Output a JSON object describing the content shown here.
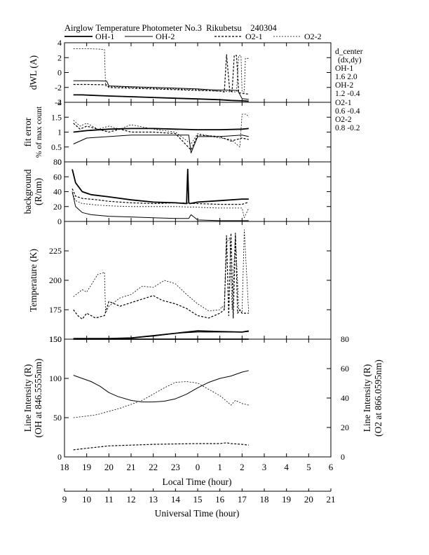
{
  "header": {
    "title": "Airglow Temperature Photometer No.3  Rikubetsu    240304"
  },
  "legend": [
    {
      "name": "OH-1",
      "dash": "",
      "width": 1.8
    },
    {
      "name": "OH-2",
      "dash": "",
      "width": 1.0
    },
    {
      "name": "O2-1",
      "dash": "3,2",
      "width": 1.2
    },
    {
      "name": "O2-2",
      "dash": "2,2",
      "width": 0.8
    }
  ],
  "side_info": {
    "heading": "d_center",
    "subheading": "(dx,dy)",
    "entries": [
      {
        "label": "OH-1",
        "value": "1.6   2.0"
      },
      {
        "label": "OH-2",
        "value": "1.2  -0.4"
      },
      {
        "label": "O2-1",
        "value": "0.6  -0.4"
      },
      {
        "label": "O2-2",
        "value": "0.8  -0.2"
      }
    ]
  },
  "chart_data": {
    "type": "line",
    "x_axis": {
      "label": "Local Time (hour)",
      "range": [
        18,
        30
      ],
      "ticks": [
        "18",
        "19",
        "20",
        "21",
        "22",
        "23",
        "0",
        "1",
        "2",
        "3",
        "4",
        "5",
        "6"
      ]
    },
    "ut_axis": {
      "label": "Universal Time (hour)",
      "range": [
        9,
        21
      ],
      "ticks": [
        "9",
        "10",
        "11",
        "12",
        "13",
        "14",
        "15",
        "16",
        "17",
        "18",
        "19",
        "20",
        "21"
      ]
    },
    "panels": [
      {
        "id": "dwl",
        "ylabel": [
          "dWL (A)"
        ],
        "ylim": [
          -4,
          4
        ],
        "yticks": [
          "4",
          "2",
          "0",
          "-2",
          "-4"
        ],
        "series": [
          {
            "name": "OH-1",
            "x": [
              18.4,
              18.8,
              19.5,
              20.0,
              21.0,
              22.0,
              23.0,
              24.0,
              25.0,
              25.5,
              26.0,
              26.3
            ],
            "y": [
              -3.0,
              -3.0,
              -3.1,
              -3.15,
              -3.25,
              -3.35,
              -3.45,
              -3.55,
              -3.65,
              -3.75,
              -3.8,
              -3.85
            ]
          },
          {
            "name": "OH-2",
            "x": [
              18.4,
              19.0,
              19.5,
              19.9,
              20.0,
              21.0,
              22.0,
              23.0,
              24.0,
              24.5,
              25.0,
              25.8,
              26.0,
              26.3
            ],
            "y": [
              -1.1,
              -1.1,
              -1.1,
              -1.15,
              -1.8,
              -1.9,
              -2.0,
              -2.1,
              -2.2,
              -2.3,
              -2.35,
              -2.4,
              -3.5,
              -3.6
            ]
          },
          {
            "name": "O2-1",
            "x": [
              18.4,
              19.0,
              19.9,
              20.0,
              21.0,
              22.0,
              23.0,
              24.0,
              24.6,
              25.0,
              25.2,
              25.3,
              25.45,
              25.55,
              25.65,
              25.75,
              25.85,
              26.0,
              26.3
            ],
            "y": [
              -1.6,
              -1.6,
              -1.65,
              -2.0,
              -2.1,
              -2.2,
              -2.3,
              -2.4,
              -2.45,
              -2.5,
              -2.6,
              2.4,
              -2.6,
              -2.5,
              2.3,
              2.3,
              -2.7,
              -2.8,
              -2.9
            ]
          },
          {
            "name": "O2-2",
            "x": [
              18.4,
              19.0,
              19.5,
              19.8,
              19.85,
              20.0,
              21.0,
              22.0,
              23.0,
              24.0,
              25.0,
              25.5,
              25.75,
              25.85,
              25.95,
              26.0,
              26.1,
              26.15,
              26.3
            ],
            "y": [
              3.2,
              3.2,
              3.15,
              3.1,
              -1.8,
              -1.85,
              -2.0,
              -2.1,
              -2.2,
              -2.3,
              -2.5,
              -2.6,
              -2.6,
              2.3,
              2.3,
              -2.6,
              -2.6,
              1.9,
              1.9
            ]
          }
        ]
      },
      {
        "id": "fit",
        "ylabel": [
          "fit error",
          "% of max count"
        ],
        "ylim": [
          0,
          2
        ],
        "yticks": [
          "2",
          "1.5",
          "1",
          "0.5",
          "0"
        ],
        "series": [
          {
            "name": "OH-1",
            "x": [
              18.4,
              19.0,
              20.0,
              21.0,
              22.0,
              23.0,
              24.0,
              25.0,
              26.0,
              26.3
            ],
            "y": [
              1.0,
              1.05,
              1.1,
              1.12,
              1.12,
              1.1,
              1.08,
              1.08,
              1.1,
              1.12
            ]
          },
          {
            "name": "OH-2",
            "x": [
              18.4,
              19.0,
              20.0,
              21.0,
              22.0,
              23.0,
              23.6,
              23.7,
              24.0,
              25.0,
              26.0,
              26.3
            ],
            "y": [
              0.6,
              0.8,
              0.85,
              0.9,
              0.9,
              0.9,
              0.9,
              0.3,
              0.85,
              0.85,
              0.9,
              0.85
            ]
          },
          {
            "name": "O2-1",
            "x": [
              18.4,
              18.7,
              19.0,
              19.5,
              20.0,
              20.5,
              21.0,
              22.0,
              23.0,
              23.7,
              24.0,
              25.0,
              25.5,
              26.0,
              26.3
            ],
            "y": [
              1.3,
              1.1,
              1.2,
              1.1,
              1.0,
              1.1,
              1.0,
              1.0,
              0.95,
              0.4,
              0.9,
              0.85,
              0.7,
              0.8,
              0.75
            ]
          },
          {
            "name": "O2-2",
            "x": [
              18.4,
              18.7,
              19.0,
              19.5,
              20.0,
              20.5,
              21.0,
              22.0,
              23.0,
              23.7,
              24.0,
              25.0,
              25.5,
              25.9,
              26.0,
              26.2,
              26.3
            ],
            "y": [
              1.4,
              1.2,
              1.3,
              1.1,
              1.2,
              1.1,
              1.25,
              1.1,
              1.0,
              0.6,
              0.95,
              0.8,
              0.75,
              0.5,
              1.6,
              1.6,
              1.5
            ]
          }
        ]
      },
      {
        "id": "bg",
        "ylabel": [
          "background",
          "(R/nm)"
        ],
        "ylim": [
          0,
          80
        ],
        "yticks": [
          "80",
          "60",
          "40",
          "20",
          "0"
        ],
        "series": [
          {
            "name": "OH-1",
            "x": [
              18.35,
              18.5,
              18.8,
              19.2,
              20.0,
              21.0,
              22.0,
              23.0,
              23.5,
              23.55,
              23.6,
              23.65,
              24.0,
              25.0,
              26.0,
              26.3
            ],
            "y": [
              70,
              52,
              40,
              36,
              33,
              29,
              26,
              25,
              24,
              70,
              25,
              24,
              26,
              28,
              30,
              30
            ]
          },
          {
            "name": "OH-2",
            "x": [
              18.35,
              18.5,
              18.8,
              19.2,
              20.0,
              21.0,
              22.0,
              23.0,
              23.6,
              23.7,
              24.0,
              25.0,
              26.0,
              26.3
            ],
            "y": [
              40,
              20,
              12,
              9,
              7,
              6,
              5,
              4,
              4,
              9,
              2,
              1,
              1,
              1
            ]
          },
          {
            "name": "O2-1",
            "x": [
              18.35,
              18.5,
              18.8,
              19.5,
              20.0,
              21.0,
              22.0,
              23.0,
              24.0,
              25.0,
              26.0,
              26.3
            ],
            "y": [
              44,
              34,
              31,
              29,
              27,
              25,
              24,
              25,
              24,
              23,
              23,
              26
            ]
          },
          {
            "name": "O2-2",
            "x": [
              18.35,
              18.5,
              18.8,
              19.5,
              20.0,
              21.0,
              22.0,
              23.0,
              24.0,
              25.0,
              26.0,
              26.1,
              26.3
            ],
            "y": [
              38,
              28,
              24,
              22,
              21,
              20,
              20,
              20,
              19,
              18,
              18,
              5,
              18
            ]
          }
        ]
      },
      {
        "id": "temp",
        "ylabel": [
          "Temperature (K)"
        ],
        "ylim": [
          150,
          250
        ],
        "yticks": [
          "225",
          "200",
          "175",
          "150"
        ],
        "series": [
          {
            "name": "OH-1",
            "x": [
              18.4,
              19.0,
              20.0,
              21.0,
              22.0,
              23.0,
              24.0,
              25.0,
              26.0,
              26.3
            ],
            "y": [
              150.5,
              150.5,
              150.5,
              151,
              153,
              155,
              157,
              156.5,
              156,
              157
            ]
          },
          {
            "name": "OH-2",
            "x": [
              18.4,
              19.0,
              20.0,
              21.0,
              22.0,
              23.0,
              24.0,
              25.0,
              26.0,
              26.3
            ],
            "y": [
              150,
              150,
              150,
              151,
              152.5,
              155,
              156,
              156,
              156,
              156.5
            ]
          },
          {
            "name": "O2-1",
            "x": [
              18.4,
              18.6,
              18.8,
              19.0,
              19.4,
              19.8,
              20.0,
              20.5,
              21.0,
              21.5,
              22.0,
              22.4,
              23.0,
              23.5,
              24.0,
              24.5,
              25.0,
              25.2,
              25.3,
              25.4,
              25.5,
              25.6,
              25.7,
              25.8,
              25.9,
              26.0,
              26.3
            ],
            "y": [
              175,
              170,
              167,
              172,
              168,
              170,
              182,
              178,
              181,
              184,
              187,
              183,
              180,
              176,
              170,
              168,
              172,
              175,
              238,
              170,
              240,
              168,
              240,
              172,
              175,
              172,
              172
            ]
          },
          {
            "name": "O2-2",
            "x": [
              18.4,
              18.8,
              19.0,
              19.5,
              19.7,
              19.8,
              19.85,
              20.0,
              20.5,
              21.0,
              21.5,
              22.0,
              22.5,
              23.0,
              23.5,
              24.0,
              24.5,
              25.0,
              25.1,
              25.2,
              25.3,
              25.45,
              25.55,
              25.7,
              25.85,
              26.0,
              26.1,
              26.3
            ],
            "y": [
              186,
              192,
              190,
              205,
              206,
              207,
              172,
              178,
              185,
              188,
              195,
              194,
              200,
              197,
              188,
              180,
              174,
              175,
              178,
              175,
              232,
              236,
              175,
              240,
              175,
              172,
              243,
              172
            ]
          }
        ]
      },
      {
        "id": "intensity",
        "ylabel": [
          "Line Intensity (R)",
          "(OH at 846.5555nm)"
        ],
        "ylabel_right": [
          "Line Intensity (R)",
          "(O2 at 866.0595nm)"
        ],
        "ylim": [
          0,
          150
        ],
        "yticks": [
          "150",
          "100",
          "50",
          "0"
        ],
        "ylim_right": [
          0,
          80
        ],
        "yticks_right": [
          "80",
          "60",
          "40",
          "20",
          "0"
        ],
        "series": [
          {
            "name": "OH-1",
            "x": [
              18.4,
              26.3
            ],
            "y": [
              150,
              150
            ]
          },
          {
            "name": "OH-2",
            "x": [
              18.4,
              18.8,
              19.2,
              19.6,
              20.0,
              20.4,
              21.0,
              21.5,
              22.0,
              22.5,
              23.0,
              23.5,
              24.0,
              24.5,
              25.0,
              25.5,
              26.0,
              26.3
            ],
            "y": [
              104,
              100,
              96,
              90,
              82,
              77,
              72,
              70,
              70,
              71,
              74,
              80,
              88,
              95,
              100,
              103,
              108,
              110
            ]
          },
          {
            "name": "O2-1",
            "x": [
              18.4,
              19.0,
              20.0,
              21.0,
              22.0,
              23.0,
              24.0,
              25.0,
              25.3,
              25.5,
              26.0,
              26.3
            ],
            "y": [
              9,
              11,
              14,
              15,
              16,
              16.5,
              17,
              17,
              18,
              17,
              16,
              15
            ]
          },
          {
            "name": "O2-2",
            "x": [
              18.4,
              19.0,
              19.5,
              20.0,
              20.5,
              21.0,
              21.5,
              22.0,
              22.5,
              23.0,
              23.5,
              24.0,
              24.5,
              25.0,
              25.3,
              25.5,
              25.7,
              26.0,
              26.3
            ],
            "y": [
              50,
              52,
              54,
              58,
              62,
              67,
              72,
              80,
              88,
              95,
              96,
              94,
              86,
              78,
              71,
              66,
              72,
              68,
              66
            ]
          }
        ]
      }
    ]
  }
}
